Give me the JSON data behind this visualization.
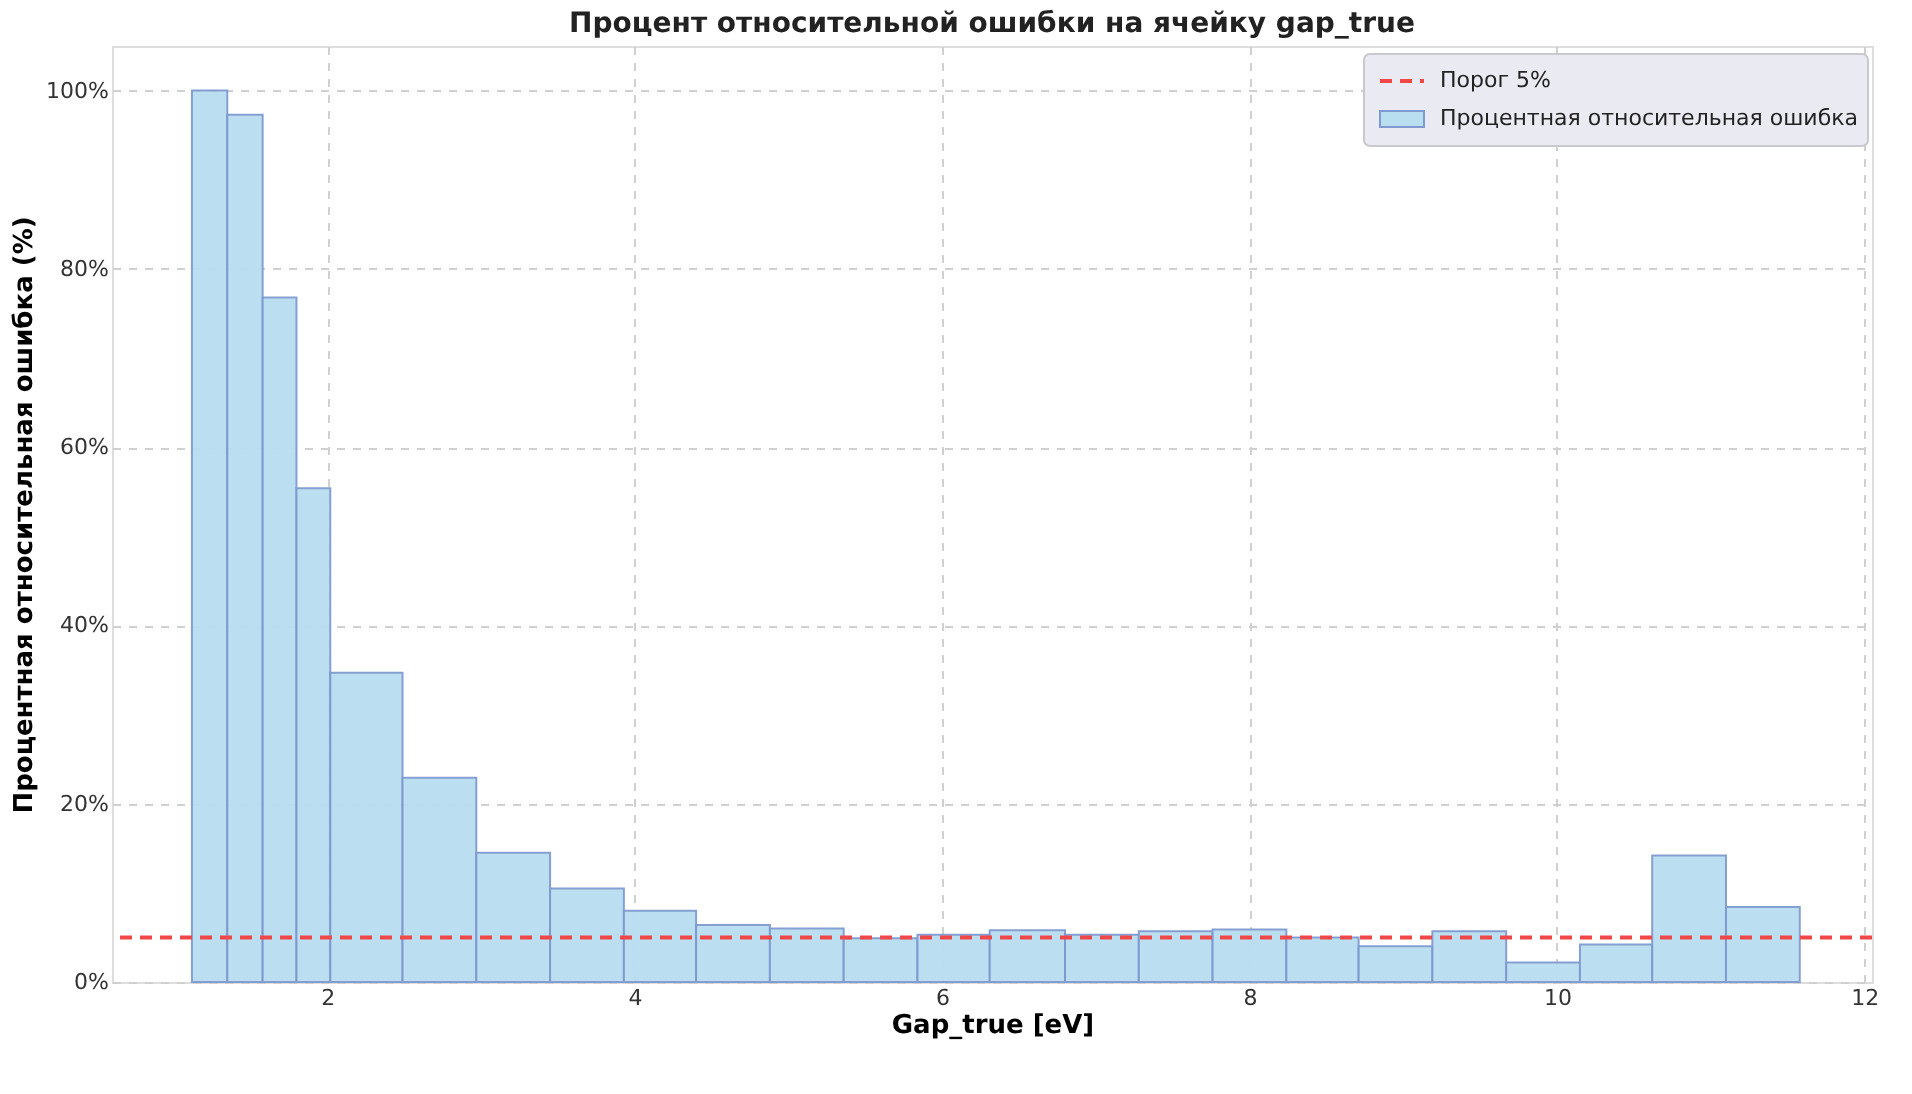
{
  "chart_data": {
    "type": "histogram",
    "title": "Процент относительной ошибки на ячейку gap_true",
    "xlabel": "Gap_true [eV]",
    "ylabel": "Процентная относительная ошибка (%)",
    "bins": [
      1.12,
      1.35,
      1.58,
      1.8,
      2.02,
      2.49,
      2.97,
      3.45,
      3.93,
      4.4,
      4.88,
      5.36,
      5.84,
      6.31,
      6.8,
      7.28,
      7.76,
      8.24,
      8.71,
      9.19,
      9.67,
      10.15,
      10.62,
      11.1,
      11.58
    ],
    "series": [
      {
        "name": "Процентная относительная ошибка",
        "color": "#b8def0",
        "values": [
          100,
          97.3,
          76.8,
          55.4,
          34.7,
          22.9,
          14.5,
          10.5,
          8.0,
          6.4,
          6.0,
          4.9,
          5.3,
          5.8,
          5.3,
          5.7,
          5.9,
          5.0,
          4.0,
          5.7,
          2.2,
          4.2,
          14.2,
          8.4
        ]
      }
    ],
    "ref_lines": [
      {
        "axis": "y",
        "value": 5,
        "label": "Порог 5%",
        "color": "#f04848",
        "line_style": "dashed"
      }
    ],
    "xlim": [
      0.6,
      12.05
    ],
    "xticks": [
      2,
      4,
      6,
      8,
      10,
      12
    ],
    "ylim": [
      0,
      105
    ],
    "yticks": [
      {
        "value": 0,
        "label": "0%"
      },
      {
        "value": 20,
        "label": "20%"
      },
      {
        "value": 40,
        "label": "40%"
      },
      {
        "value": 60,
        "label": "60%"
      },
      {
        "value": 80,
        "label": "80%"
      },
      {
        "value": 100,
        "label": "100%"
      }
    ],
    "grid": true,
    "legend": "top right"
  }
}
